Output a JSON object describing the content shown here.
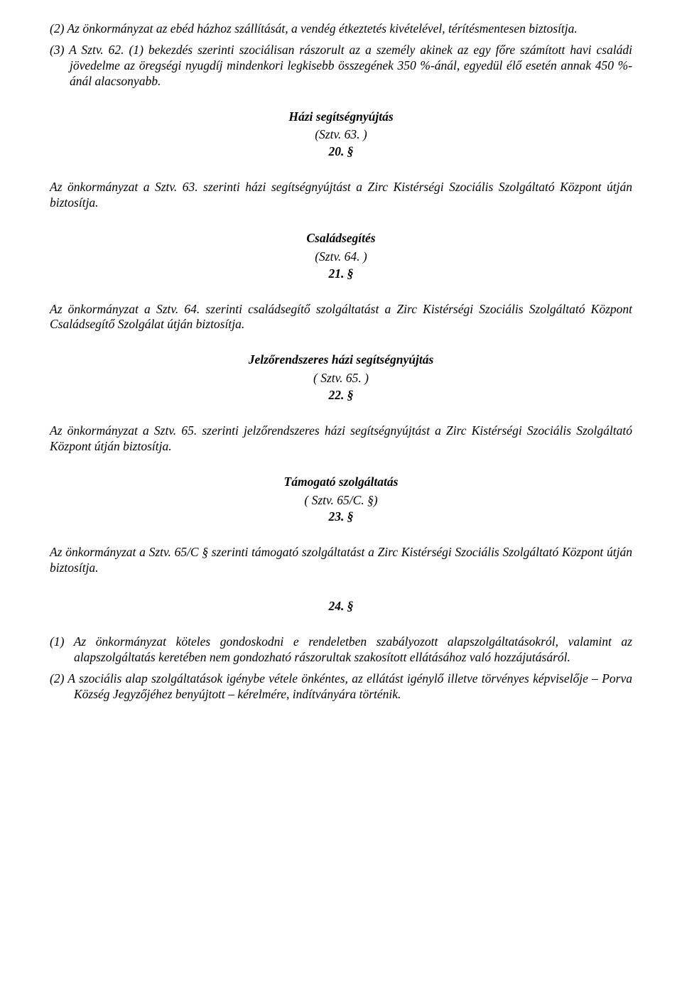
{
  "typography": {
    "font_family": "Times New Roman",
    "font_style": "italic",
    "body_fontsize_pt": 13,
    "title_weight": "bold",
    "text_color": "#000000",
    "background_color": "#ffffff"
  },
  "p1": "(2) Az önkormányzat az ebéd házhoz szállítását, a vendég étkeztetés kivételével, térítésmentesen biztosítja.",
  "p2": "(3) A Sztv. 62. (1) bekezdés szerinti szociálisan rászorult az a személy akinek az egy főre számított havi családi jövedelme az öregségi nyugdíj mindenkori legkisebb összegének 350 %-ánál, egyedül élő esetén annak 450 %-ánál alacsonyabb.",
  "s1": {
    "title": "Házi segítségnyújtás",
    "ref": "(Sztv. 63. )",
    "num": "20. §"
  },
  "p3": "Az önkormányzat a Sztv. 63. szerinti házi segítségnyújtást a Zirc Kistérségi Szociális Szolgáltató Központ útján biztosítja.",
  "s2": {
    "title": "Családsegítés",
    "ref": "(Sztv. 64. )",
    "num": "21. §"
  },
  "p4": "Az önkormányzat a Sztv. 64. szerinti családsegítő szolgáltatást a Zirc Kistérségi Szociális Szolgáltató Központ Családsegítő Szolgálat útján biztosítja.",
  "s3": {
    "title": "Jelzőrendszeres házi segítségnyújtás",
    "ref": "( Sztv. 65. )",
    "num": "22. §"
  },
  "p5": "Az önkormányzat a Sztv. 65. szerinti jelzőrendszeres házi segítségnyújtást a Zirc Kistérségi Szociális Szolgáltató Központ útján biztosítja.",
  "s4": {
    "title": "Támogató szolgáltatás",
    "ref": "( Sztv. 65/C. §)",
    "num": "23. §"
  },
  "p6": "Az önkormányzat a Sztv. 65/C § szerinti támogató szolgáltatást a Zirc Kistérségi Szociális Szolgáltató Központ útján biztosítja.",
  "s5": {
    "num": "24. §"
  },
  "p7": "(1) Az önkormányzat köteles gondoskodni e rendeletben szabályozott alapszolgáltatásokról, valamint az alapszolgáltatás keretében nem gondozható rászorultak szakosított ellátásához való hozzájutásáról.",
  "p8": "(2) A szociális alap szolgáltatások igénybe vétele önkéntes, az ellátást igénylő illetve törvényes képviselője – Porva Község Jegyzőjéhez benyújtott – kérelmére, indítványára történik."
}
